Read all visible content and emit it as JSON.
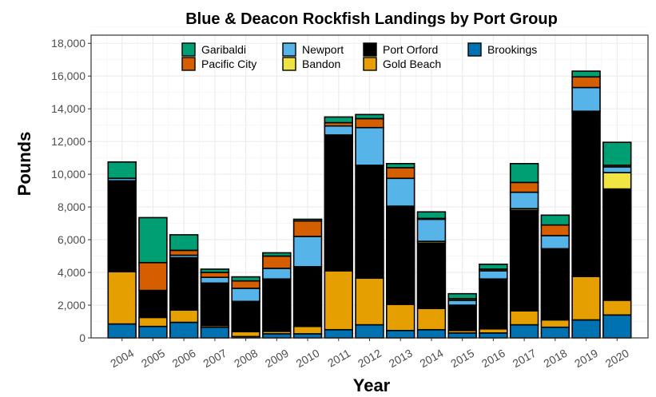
{
  "chart_data": {
    "type": "bar",
    "stacked": true,
    "title": "Blue & Deacon Rockfish Landings by Port Group",
    "xlabel": "Year",
    "ylabel": "Pounds",
    "ylim": [
      0,
      18500
    ],
    "y_ticks": [
      0,
      2000,
      4000,
      6000,
      8000,
      10000,
      12000,
      14000,
      16000,
      18000
    ],
    "y_tick_labels": [
      "0",
      "2,000",
      "4,000",
      "6,000",
      "8,000",
      "10,000",
      "12,000",
      "14,000",
      "16,000",
      "18,000"
    ],
    "grid": true,
    "legend_position": "top-inside",
    "categories": [
      "2004",
      "2005",
      "2006",
      "2007",
      "2008",
      "2009",
      "2010",
      "2011",
      "2012",
      "2013",
      "2014",
      "2015",
      "2016",
      "2017",
      "2018",
      "2019",
      "2020"
    ],
    "series": [
      {
        "name": "Brookings",
        "color": "#0072B2",
        "values": [
          850,
          700,
          950,
          650,
          80,
          250,
          250,
          500,
          800,
          450,
          500,
          300,
          300,
          800,
          650,
          1100,
          1400
        ]
      },
      {
        "name": "Gold Beach",
        "color": "#E69F00",
        "values": [
          3200,
          550,
          750,
          100,
          300,
          150,
          450,
          3600,
          2850,
          1600,
          1300,
          150,
          250,
          850,
          450,
          2650,
          900
        ]
      },
      {
        "name": "Port Orford",
        "color": "#000000",
        "values": [
          5500,
          1650,
          3200,
          2600,
          1850,
          3150,
          3650,
          8300,
          6900,
          6000,
          4000,
          1550,
          3050,
          6150,
          4350,
          10100,
          6800
        ]
      },
      {
        "name": "Bandon",
        "color": "#F0E442",
        "values": [
          50,
          0,
          0,
          0,
          0,
          50,
          0,
          0,
          0,
          0,
          100,
          0,
          0,
          100,
          0,
          0,
          1000
        ]
      },
      {
        "name": "Newport",
        "color": "#56B4E9",
        "values": [
          150,
          0,
          150,
          350,
          800,
          650,
          1850,
          550,
          2300,
          1700,
          1350,
          300,
          500,
          1000,
          800,
          1450,
          350
        ]
      },
      {
        "name": "Pacific City",
        "color": "#D55E00",
        "values": [
          0,
          1700,
          300,
          300,
          450,
          750,
          950,
          200,
          550,
          650,
          50,
          100,
          100,
          600,
          650,
          650,
          100
        ]
      },
      {
        "name": "Garibaldi",
        "color": "#009E73",
        "values": [
          1000,
          2750,
          950,
          200,
          250,
          200,
          100,
          350,
          250,
          250,
          400,
          300,
          300,
          1150,
          600,
          350,
          1400
        ]
      }
    ],
    "legend_rows": [
      [
        "Garibaldi",
        "Newport",
        "Port Orford",
        "Brookings"
      ],
      [
        "Pacific City",
        "Bandon",
        "Gold Beach"
      ]
    ]
  }
}
